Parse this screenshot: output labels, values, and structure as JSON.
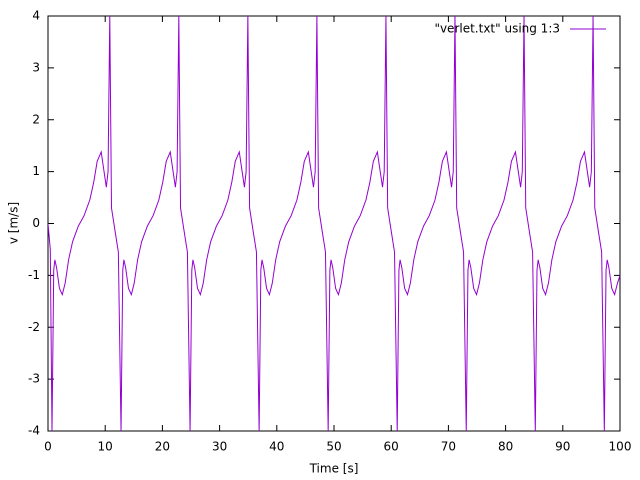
{
  "chart_data": {
    "type": "line",
    "xlabel": "Time [s]",
    "ylabel": "v [m/s]",
    "xlim": [
      0,
      100
    ],
    "xticks": [
      0,
      10,
      20,
      30,
      40,
      50,
      60,
      70,
      80,
      90,
      100
    ],
    "ylim": [
      -4,
      4
    ],
    "yticks": [
      -4,
      -3,
      -2,
      -1,
      0,
      1,
      2,
      3,
      4
    ],
    "grid": false,
    "legend": "top right",
    "series": [
      {
        "name": "\"verlet.txt\" using 1:3",
        "color": "#9400d3",
        "x": [
          0,
          0.4,
          0.7,
          1.0,
          1.2,
          1.5,
          2.0,
          2.5,
          3.0,
          3.6,
          4.3,
          5.3,
          6.3,
          7.3,
          8.0,
          8.6,
          9.3,
          9.8,
          10.2,
          10.5,
          10.8,
          11.1,
          11.8,
          12.3,
          12.77,
          13.07,
          13.27,
          13.57,
          14.07,
          14.57,
          15.07,
          15.67,
          16.37,
          17.37,
          18.37,
          19.37,
          20.07,
          20.67,
          21.37,
          21.87,
          22.27,
          22.57,
          22.87,
          23.17,
          23.87,
          24.37,
          24.84,
          25.14,
          25.34,
          25.64,
          26.14,
          26.64,
          27.14,
          27.74,
          28.44,
          29.44,
          30.44,
          31.44,
          32.14,
          32.74,
          33.44,
          33.94,
          34.34,
          34.64,
          34.94,
          35.24,
          35.94,
          36.44,
          36.91,
          37.21,
          37.41,
          37.71,
          38.21,
          38.71,
          39.21,
          39.81,
          40.51,
          41.51,
          42.51,
          43.51,
          44.21,
          44.81,
          45.51,
          46.01,
          46.41,
          46.71,
          47.01,
          47.31,
          48.01,
          48.51,
          48.98,
          49.28,
          49.48,
          49.78,
          50.28,
          50.78,
          51.28,
          51.88,
          52.58,
          53.58,
          54.58,
          55.58,
          56.28,
          56.88,
          57.58,
          58.08,
          58.48,
          58.78,
          59.08,
          59.38,
          60.08,
          60.58,
          61.05,
          61.35,
          61.55,
          61.85,
          62.35,
          62.85,
          63.35,
          63.95,
          64.65,
          65.65,
          66.65,
          67.65,
          68.35,
          68.95,
          69.65,
          70.15,
          70.55,
          70.85,
          71.15,
          71.45,
          72.15,
          72.65,
          73.12,
          73.42,
          73.62,
          73.92,
          74.42,
          74.92,
          75.42,
          76.02,
          76.72,
          77.72,
          78.72,
          79.72,
          80.42,
          81.02,
          81.72,
          82.22,
          82.62,
          82.92,
          83.22,
          83.52,
          84.22,
          84.72,
          85.19,
          85.49,
          85.69,
          85.99,
          86.49,
          86.99,
          87.49,
          88.09,
          88.79,
          89.79,
          90.79,
          91.79,
          92.49,
          93.09,
          93.79,
          94.29,
          94.69,
          94.99,
          95.29,
          95.59,
          96.29,
          96.79,
          97.26,
          97.56,
          97.76,
          98.06,
          98.56,
          99.06,
          99.56,
          100
        ],
        "values": [
          0,
          -0.5,
          -4,
          -0.9,
          -0.7,
          -0.85,
          -1.25,
          -1.37,
          -1.15,
          -0.7,
          -0.35,
          -0.05,
          0.15,
          0.45,
          0.8,
          1.2,
          1.38,
          1.0,
          0.7,
          1.0,
          4,
          0.3,
          -0.2,
          -0.55,
          -4,
          -0.9,
          -0.7,
          -0.85,
          -1.25,
          -1.37,
          -1.15,
          -0.7,
          -0.35,
          -0.05,
          0.15,
          0.45,
          0.8,
          1.2,
          1.38,
          1.0,
          0.7,
          1.0,
          4,
          0.3,
          -0.2,
          -0.55,
          -4,
          -0.9,
          -0.7,
          -0.85,
          -1.25,
          -1.37,
          -1.15,
          -0.7,
          -0.35,
          -0.05,
          0.15,
          0.45,
          0.8,
          1.2,
          1.38,
          1.0,
          0.7,
          1.0,
          4,
          0.3,
          -0.2,
          -0.55,
          -4,
          -0.9,
          -0.7,
          -0.85,
          -1.25,
          -1.37,
          -1.15,
          -0.7,
          -0.35,
          -0.05,
          0.15,
          0.45,
          0.8,
          1.2,
          1.38,
          1.0,
          0.7,
          1.0,
          4,
          0.3,
          -0.2,
          -0.55,
          -4,
          -0.9,
          -0.7,
          -0.85,
          -1.25,
          -1.37,
          -1.15,
          -0.7,
          -0.35,
          -0.05,
          0.15,
          0.45,
          0.8,
          1.2,
          1.38,
          1.0,
          0.7,
          1.0,
          4,
          0.3,
          -0.2,
          -0.55,
          -4,
          -0.9,
          -0.7,
          -0.85,
          -1.25,
          -1.37,
          -1.15,
          -0.7,
          -0.35,
          -0.05,
          0.15,
          0.45,
          0.8,
          1.2,
          1.38,
          1.0,
          0.7,
          1.0,
          4,
          0.3,
          -0.2,
          -0.55,
          -4,
          -0.9,
          -0.7,
          -0.85,
          -1.25,
          -1.37,
          -1.15,
          -0.7,
          -0.35,
          -0.05,
          0.15,
          0.45,
          0.8,
          1.2,
          1.38,
          1.0,
          0.7,
          1.0,
          4,
          0.3,
          -0.2,
          -0.55,
          -4,
          -0.9,
          -0.7,
          -0.85,
          -1.25,
          -1.37,
          -1.15,
          -0.7,
          -0.35,
          -0.05,
          0.15,
          0.45,
          0.8,
          1.2,
          1.38,
          1.0,
          0.7,
          1.0,
          4,
          0.3,
          -0.2,
          -0.55,
          -4,
          -0.9,
          -0.7,
          -0.85,
          -1.25,
          -1.37,
          -1.15,
          -1.0
        ]
      }
    ]
  }
}
